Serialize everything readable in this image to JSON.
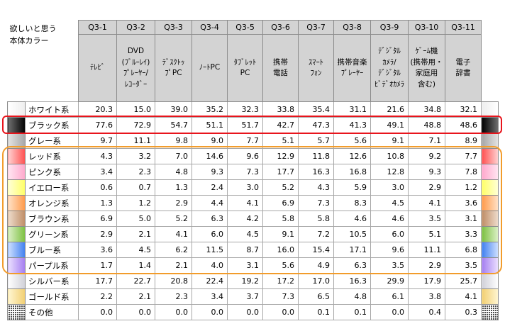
{
  "chart_data": {
    "type": "table",
    "row_header_lines": [
      "欲しいと思う",
      "本体カラー"
    ],
    "columns": [
      {
        "code": "Q3-1",
        "label_lines": [
          "ﾃﾚﾋﾞ"
        ]
      },
      {
        "code": "Q3-2",
        "label_lines": [
          "DVD",
          "(ﾌﾞﾙｰﾚｲ)",
          "ﾌﾟﾚｰﾔｰ/",
          "ﾚｺｰﾀﾞｰ"
        ]
      },
      {
        "code": "Q3-3",
        "label_lines": [
          "ﾃﾞｽｸﾄｯ",
          "ﾌﾟPC"
        ]
      },
      {
        "code": "Q3-4",
        "label_lines": [
          "ﾉｰﾄPC"
        ]
      },
      {
        "code": "Q3-5",
        "label_lines": [
          "ﾀﾌﾞﾚｯﾄ",
          "PC"
        ]
      },
      {
        "code": "Q3-6",
        "label_lines": [
          "携帯",
          "電話"
        ]
      },
      {
        "code": "Q3-7",
        "label_lines": [
          "ｽﾏｰﾄ",
          "ﾌｫﾝ"
        ]
      },
      {
        "code": "Q3-8",
        "label_lines": [
          "携帯音楽",
          "ﾌﾟﾚｰﾔｰ"
        ]
      },
      {
        "code": "Q3-9",
        "label_lines": [
          "ﾃﾞｼﾞﾀﾙ",
          "ｶﾒﾗ/",
          "ﾃﾞｼﾞﾀﾙ",
          "ﾋﾞﾃﾞｵｶﾒﾗ"
        ]
      },
      {
        "code": "Q3-10",
        "label_lines": [
          "ｹﾞｰﾑ機",
          "(携帯用・",
          "家庭用",
          "含む)"
        ]
      },
      {
        "code": "Q3-11",
        "label_lines": [
          "電子",
          "辞書"
        ]
      }
    ],
    "rows": [
      {
        "label": "ホワイト系",
        "swatch": [
          "#ffffff",
          "#eeeeee"
        ],
        "values": [
          20.3,
          15.0,
          39.0,
          35.2,
          32.3,
          33.8,
          35.4,
          31.1,
          21.6,
          34.8,
          32.1
        ]
      },
      {
        "label": "ブラック系",
        "swatch": [
          "#707070",
          "#000000"
        ],
        "values": [
          77.6,
          72.9,
          54.7,
          51.1,
          51.7,
          42.7,
          47.3,
          41.3,
          49.1,
          48.8,
          48.6
        ]
      },
      {
        "label": "グレー系",
        "swatch": [
          "#e4e4e4",
          "#a6a6a6"
        ],
        "values": [
          9.7,
          11.1,
          9.8,
          9.0,
          7.7,
          5.1,
          5.7,
          5.6,
          9.1,
          7.1,
          8.9
        ]
      },
      {
        "label": "レッド系",
        "swatch": [
          "#ffd2d2",
          "#ff5050"
        ],
        "values": [
          4.3,
          3.2,
          7.0,
          14.6,
          9.6,
          12.9,
          11.8,
          12.6,
          10.8,
          9.2,
          7.7
        ]
      },
      {
        "label": "ピンク系",
        "swatch": [
          "#ffe6f2",
          "#ffa8cc"
        ],
        "values": [
          3.4,
          2.3,
          4.8,
          9.3,
          7.3,
          17.7,
          16.3,
          16.8,
          12.8,
          9.3,
          7.8
        ]
      },
      {
        "label": "イエロー系",
        "swatch": [
          "#ffffd8",
          "#ffff66"
        ],
        "values": [
          0.6,
          0.7,
          1.3,
          2.4,
          3.0,
          5.2,
          4.3,
          5.9,
          3.0,
          2.9,
          1.2
        ]
      },
      {
        "label": "オレンジ系",
        "swatch": [
          "#ffe2c8",
          "#ff9a4a"
        ],
        "values": [
          1.3,
          1.2,
          2.9,
          4.4,
          4.1,
          6.9,
          7.3,
          8.3,
          4.5,
          4.1,
          3.6
        ]
      },
      {
        "label": "ブラウン系",
        "swatch": [
          "#eedccc",
          "#bf8d66"
        ],
        "values": [
          6.9,
          5.0,
          5.2,
          6.3,
          4.2,
          5.8,
          5.8,
          4.6,
          4.6,
          3.5,
          3.1
        ]
      },
      {
        "label": "グリーン系",
        "swatch": [
          "#dcf0c8",
          "#7cc040"
        ],
        "values": [
          2.9,
          2.1,
          4.1,
          6.0,
          4.5,
          9.1,
          7.2,
          10.5,
          6.0,
          5.1,
          3.3
        ]
      },
      {
        "label": "ブルー系",
        "swatch": [
          "#cfe0ff",
          "#4080f0"
        ],
        "values": [
          3.6,
          4.5,
          6.2,
          11.5,
          8.7,
          16.0,
          15.4,
          17.1,
          9.6,
          11.1,
          6.8
        ]
      },
      {
        "label": "パープル系",
        "swatch": [
          "#ebe0ff",
          "#a47ef0"
        ],
        "values": [
          1.7,
          1.4,
          2.1,
          4.0,
          3.1,
          5.6,
          4.9,
          6.3,
          3.5,
          2.9,
          3.5
        ]
      },
      {
        "label": "シルバー系",
        "swatch": [
          "#ffffff",
          "#d0d0d8"
        ],
        "values": [
          17.7,
          22.7,
          20.8,
          22.4,
          19.2,
          17.2,
          17.0,
          16.3,
          29.9,
          17.9,
          25.7
        ]
      },
      {
        "label": "ゴールド系",
        "swatch": [
          "#fff6d2",
          "#f2cf72"
        ],
        "values": [
          2.2,
          2.1,
          2.3,
          3.4,
          3.7,
          7.3,
          6.5,
          4.8,
          6.1,
          3.8,
          4.1
        ]
      },
      {
        "label": "その他",
        "swatch": [
          "#ffffff",
          "#ffffff"
        ],
        "swatch_dots": "#333333",
        "values": [
          0.0,
          0.0,
          0.0,
          0.0,
          0.0,
          0.0,
          0.1,
          0.1,
          0.0,
          0.4,
          0.3
        ]
      }
    ]
  },
  "highlight_colors": {
    "black_row": "#e8141c",
    "chromatic_rows": "#f29c2b"
  }
}
